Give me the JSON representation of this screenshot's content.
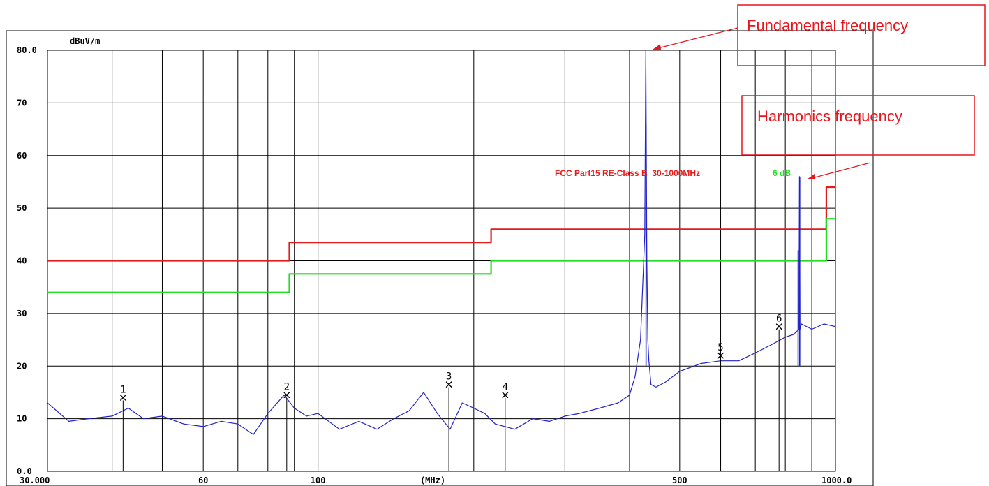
{
  "chart_data": {
    "type": "line",
    "xscale": "log",
    "xlim": [
      30,
      1000
    ],
    "ylim": [
      0,
      80
    ],
    "ylabel": "dBuV/m",
    "xlabel": "(MHz)",
    "y_tick_labels": [
      {
        "value": 80,
        "label": "80.0"
      },
      {
        "value": 70,
        "label": "70"
      },
      {
        "value": 60,
        "label": "60"
      },
      {
        "value": 50,
        "label": "50"
      },
      {
        "value": 40,
        "label": "40"
      },
      {
        "value": 30,
        "label": "30"
      },
      {
        "value": 20,
        "label": "20"
      },
      {
        "value": 10,
        "label": "10"
      },
      {
        "value": 0,
        "label": "0.0"
      }
    ],
    "x_tick_labels": [
      {
        "value": 30,
        "label": "30.000"
      },
      {
        "value": 60,
        "label": "60"
      },
      {
        "value": 100,
        "label": "100"
      },
      {
        "value": 500,
        "label": "500"
      },
      {
        "value": 1000,
        "label": "1000.0"
      }
    ],
    "x_gridlines": [
      40,
      50,
      60,
      70,
      80,
      90,
      100,
      200,
      300,
      400,
      500,
      600,
      700,
      800,
      900
    ],
    "y_gridlines": [
      10,
      20,
      30,
      40,
      50,
      60,
      70
    ],
    "grid": true,
    "series": [
      {
        "name": "FCC Part15 RE-Class B_30-1000MHz",
        "color": "#e31b1b",
        "x": [
          30,
          88,
          88,
          216,
          216,
          960,
          960,
          1000
        ],
        "y": [
          40,
          40,
          43.5,
          43.5,
          46,
          46,
          54,
          54
        ]
      },
      {
        "name": "6 dB",
        "color": "#22dd22",
        "x": [
          30,
          88,
          88,
          216,
          216,
          960,
          960,
          1000
        ],
        "y": [
          34,
          34,
          37.5,
          37.5,
          40,
          40,
          48,
          48
        ]
      },
      {
        "name": "",
        "color": "#2222cc",
        "x": [
          30,
          33,
          36,
          40,
          43,
          46,
          50,
          55,
          60,
          65,
          70,
          75,
          80,
          86,
          90,
          95,
          100,
          110,
          120,
          130,
          140,
          150,
          160,
          170,
          180,
          190,
          200,
          210,
          220,
          240,
          260,
          280,
          300,
          320,
          350,
          380,
          400,
          410,
          420,
          428,
          430,
          432,
          434,
          436,
          440,
          450,
          470,
          500,
          550,
          600,
          650,
          700,
          750,
          800,
          830,
          850,
          852,
          854,
          856,
          860,
          900,
          950,
          1000
        ],
        "y": [
          13,
          9.5,
          10,
          10.5,
          12,
          10,
          10.5,
          9,
          8.5,
          9.5,
          9,
          7,
          11,
          14.5,
          12,
          10.5,
          11,
          8,
          9.5,
          8,
          10,
          11.5,
          15,
          11,
          8,
          13,
          12,
          11,
          9,
          8,
          10,
          9.5,
          10.5,
          11,
          12,
          13,
          14.5,
          18,
          25,
          45,
          80,
          40,
          25,
          21,
          16.5,
          16,
          17,
          19,
          20.5,
          21,
          21,
          22.5,
          24,
          25.5,
          26,
          27,
          56,
          27,
          27.5,
          28,
          27,
          28,
          27.5
        ]
      }
    ],
    "spikes": [
      {
        "x": 430.5,
        "y": 66
      },
      {
        "x": 853,
        "y": 56
      },
      {
        "x": 847,
        "y": 42
      }
    ],
    "markers": [
      {
        "label": "1",
        "x": 42,
        "y": 14
      },
      {
        "label": "2",
        "x": 87,
        "y": 14.5
      },
      {
        "label": "3",
        "x": 179,
        "y": 16.5
      },
      {
        "label": "4",
        "x": 230,
        "y": 14.5
      },
      {
        "label": "5",
        "x": 600,
        "y": 22
      },
      {
        "label": "6",
        "x": 778,
        "y": 27.5
      }
    ],
    "limit_labels": {
      "red": "FCC Part15 RE-Class B_30-1000MHz",
      "green": "6 dB"
    },
    "callouts": [
      {
        "text": "Fundamental frequency",
        "target_x": 430.5,
        "target_y": 80
      },
      {
        "text": "Harmonics frequency",
        "target_x": 853,
        "target_y": 56
      }
    ]
  }
}
